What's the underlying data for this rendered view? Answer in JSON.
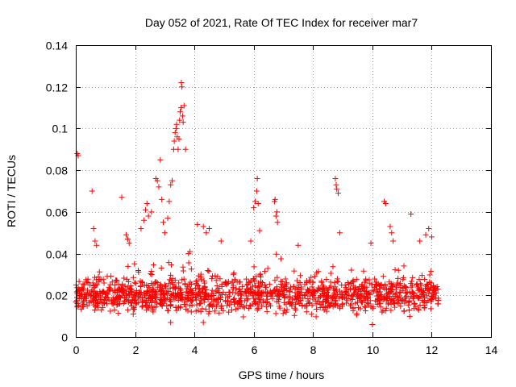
{
  "chart_data": {
    "type": "scatter",
    "title": "Day 052 of 2021, Rate Of TEC Index for receiver mar7",
    "xlabel": "GPS time / hours",
    "ylabel": "ROTI / TECUs",
    "xlim": [
      0,
      14
    ],
    "ylim": [
      0,
      0.14
    ],
    "xticks": [
      0,
      2,
      4,
      6,
      8,
      10,
      12,
      14
    ],
    "yticks": [
      0,
      0.02,
      0.04,
      0.06,
      0.08,
      0.1,
      0.12,
      0.14
    ],
    "xtick_labels": [
      "0",
      "2",
      "4",
      "6",
      "8",
      "10",
      "12",
      "14"
    ],
    "ytick_labels": [
      "0",
      "0.02",
      "0.04",
      "0.06",
      "0.08",
      "0.1",
      "0.12",
      "0.14"
    ],
    "grid": true,
    "marker": "+",
    "color": "#ff0000",
    "series": [
      {
        "name": "ROTI",
        "baseline_band": {
          "x_range": [
            0.0,
            12.25
          ],
          "y_typical_range": [
            0.008,
            0.032
          ],
          "approx_points": 1400
        },
        "notable_points": [
          {
            "x": 0.05,
            "y": 0.088
          },
          {
            "x": 0.08,
            "y": 0.087
          },
          {
            "x": 0.55,
            "y": 0.07
          },
          {
            "x": 0.6,
            "y": 0.052
          },
          {
            "x": 0.65,
            "y": 0.046
          },
          {
            "x": 0.7,
            "y": 0.044
          },
          {
            "x": 1.55,
            "y": 0.067
          },
          {
            "x": 1.7,
            "y": 0.049
          },
          {
            "x": 1.75,
            "y": 0.047
          },
          {
            "x": 1.8,
            "y": 0.045
          },
          {
            "x": 2.2,
            "y": 0.052
          },
          {
            "x": 2.3,
            "y": 0.056
          },
          {
            "x": 2.35,
            "y": 0.061
          },
          {
            "x": 2.4,
            "y": 0.064
          },
          {
            "x": 2.45,
            "y": 0.058
          },
          {
            "x": 2.55,
            "y": 0.06
          },
          {
            "x": 2.7,
            "y": 0.076
          },
          {
            "x": 2.75,
            "y": 0.075
          },
          {
            "x": 2.8,
            "y": 0.072
          },
          {
            "x": 2.85,
            "y": 0.085
          },
          {
            "x": 2.9,
            "y": 0.066
          },
          {
            "x": 2.95,
            "y": 0.055
          },
          {
            "x": 3.0,
            "y": 0.05
          },
          {
            "x": 3.1,
            "y": 0.057
          },
          {
            "x": 3.15,
            "y": 0.065
          },
          {
            "x": 3.2,
            "y": 0.073
          },
          {
            "x": 3.25,
            "y": 0.075
          },
          {
            "x": 3.3,
            "y": 0.09
          },
          {
            "x": 3.32,
            "y": 0.094
          },
          {
            "x": 3.35,
            "y": 0.098
          },
          {
            "x": 3.38,
            "y": 0.1
          },
          {
            "x": 3.4,
            "y": 0.102
          },
          {
            "x": 3.42,
            "y": 0.096
          },
          {
            "x": 3.45,
            "y": 0.09
          },
          {
            "x": 3.48,
            "y": 0.095
          },
          {
            "x": 3.5,
            "y": 0.104
          },
          {
            "x": 3.52,
            "y": 0.108
          },
          {
            "x": 3.55,
            "y": 0.11
          },
          {
            "x": 3.56,
            "y": 0.122
          },
          {
            "x": 3.58,
            "y": 0.12
          },
          {
            "x": 3.6,
            "y": 0.106
          },
          {
            "x": 3.62,
            "y": 0.103
          },
          {
            "x": 3.65,
            "y": 0.111
          },
          {
            "x": 3.7,
            "y": 0.09
          },
          {
            "x": 3.8,
            "y": 0.04
          },
          {
            "x": 3.85,
            "y": 0.041
          },
          {
            "x": 4.1,
            "y": 0.054
          },
          {
            "x": 4.3,
            "y": 0.053
          },
          {
            "x": 4.4,
            "y": 0.05
          },
          {
            "x": 4.5,
            "y": 0.052
          },
          {
            "x": 4.9,
            "y": 0.046
          },
          {
            "x": 5.9,
            "y": 0.046
          },
          {
            "x": 6.0,
            "y": 0.062
          },
          {
            "x": 6.05,
            "y": 0.065
          },
          {
            "x": 6.1,
            "y": 0.07
          },
          {
            "x": 6.12,
            "y": 0.076
          },
          {
            "x": 6.15,
            "y": 0.064
          },
          {
            "x": 6.2,
            "y": 0.051
          },
          {
            "x": 6.7,
            "y": 0.065
          },
          {
            "x": 6.72,
            "y": 0.066
          },
          {
            "x": 6.75,
            "y": 0.058
          },
          {
            "x": 6.78,
            "y": 0.06
          },
          {
            "x": 6.8,
            "y": 0.055
          },
          {
            "x": 7.5,
            "y": 0.044
          },
          {
            "x": 8.75,
            "y": 0.076
          },
          {
            "x": 8.78,
            "y": 0.073
          },
          {
            "x": 8.8,
            "y": 0.071
          },
          {
            "x": 8.85,
            "y": 0.069
          },
          {
            "x": 8.9,
            "y": 0.05
          },
          {
            "x": 9.95,
            "y": 0.045
          },
          {
            "x": 10.4,
            "y": 0.065
          },
          {
            "x": 10.45,
            "y": 0.064
          },
          {
            "x": 10.6,
            "y": 0.053
          },
          {
            "x": 10.65,
            "y": 0.05
          },
          {
            "x": 10.7,
            "y": 0.046
          },
          {
            "x": 11.3,
            "y": 0.059
          },
          {
            "x": 11.6,
            "y": 0.046
          },
          {
            "x": 11.8,
            "y": 0.049
          },
          {
            "x": 11.9,
            "y": 0.052
          },
          {
            "x": 12.0,
            "y": 0.048
          },
          {
            "x": 10.0,
            "y": 0.006
          },
          {
            "x": 4.3,
            "y": 0.007
          },
          {
            "x": 3.2,
            "y": 0.007
          }
        ]
      }
    ]
  }
}
